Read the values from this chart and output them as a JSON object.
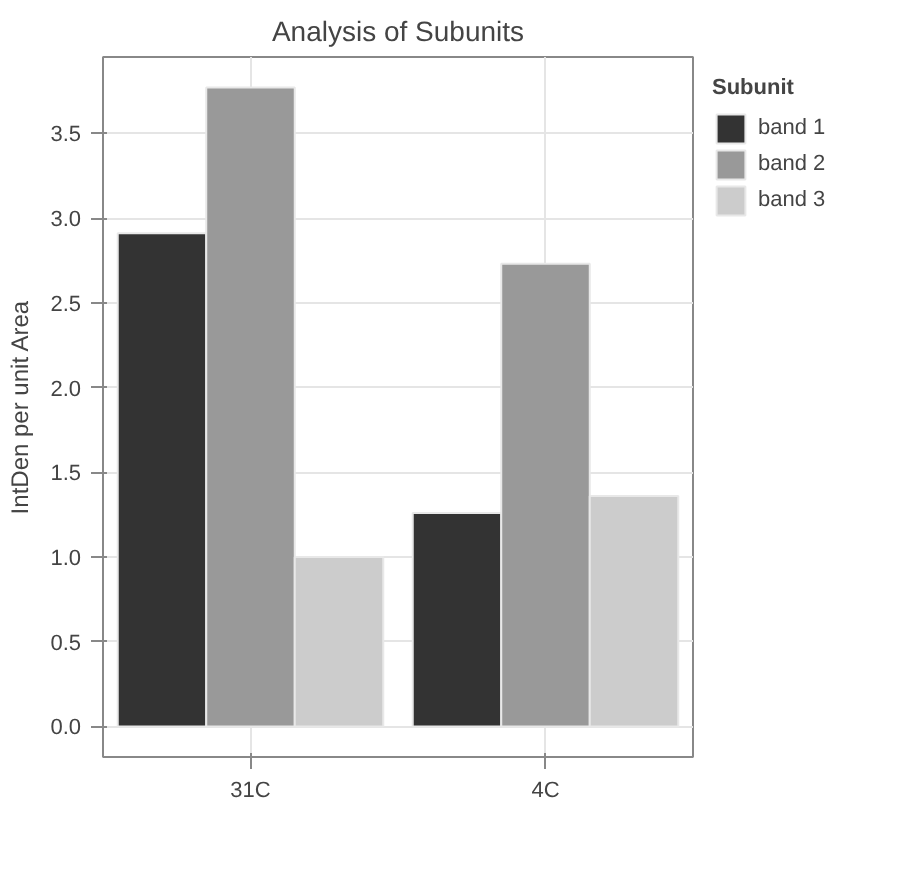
{
  "chart_data": {
    "type": "bar",
    "title": "Analysis of Subunits",
    "ylabel": "IntDen per unit Area",
    "legend_title": "Subunit",
    "categories": [
      "31C",
      "4C"
    ],
    "series": [
      {
        "name": "band 1",
        "color": "#333333",
        "values": [
          2.91,
          1.26
        ]
      },
      {
        "name": "band 2",
        "color": "#999999",
        "values": [
          3.77,
          2.73
        ]
      },
      {
        "name": "band 3",
        "color": "#cccccc",
        "values": [
          1.0,
          1.36
        ]
      }
    ],
    "ylim": [
      -0.18,
      3.95
    ],
    "yticks": [
      {
        "value": 0,
        "label": "0.0"
      },
      0.5,
      {
        "value": 1,
        "label": "1.0"
      },
      1.5,
      {
        "value": 2,
        "label": "2.0"
      },
      2.5,
      {
        "value": 3,
        "label": "3.0"
      },
      3.5
    ],
    "grid": true,
    "legend": "right"
  }
}
